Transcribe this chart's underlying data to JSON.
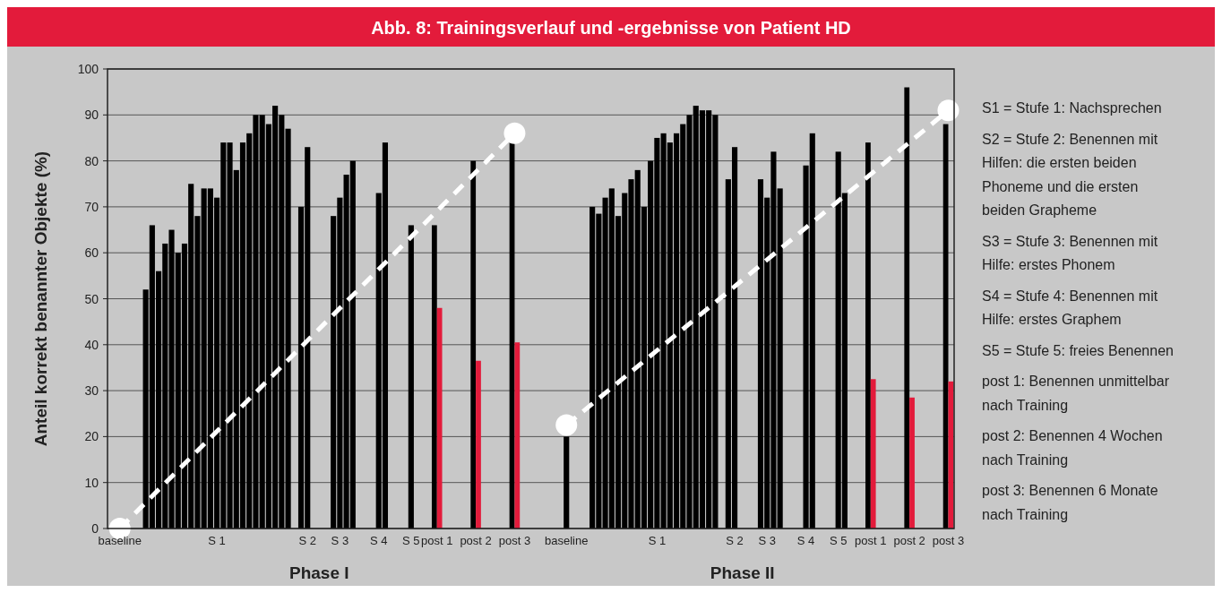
{
  "chart_data": {
    "type": "bar",
    "title": "Abb. 8: Trainingsverlauf und -ergebnisse von Patient HD",
    "ylabel": "Anteil korrekt benannter Objekte (%)",
    "categories": [
      null,
      "baseline",
      null,
      null,
      null,
      null,
      null,
      null,
      null,
      null,
      null,
      null,
      null,
      null,
      null,
      null,
      "S 1",
      null,
      null,
      null,
      null,
      null,
      null,
      null,
      null,
      null,
      null,
      null,
      null,
      null,
      "S 2",
      null,
      null,
      null,
      null,
      "S 3",
      null,
      null,
      null,
      null,
      null,
      "S 4",
      null,
      null,
      null,
      null,
      "S 5",
      null,
      null,
      null,
      "post 1",
      null,
      null,
      null,
      null,
      null,
      "post 2",
      null,
      null,
      null,
      null,
      null,
      "post 3",
      null,
      null,
      null,
      null,
      null,
      null,
      null,
      "baseline",
      null,
      null,
      null,
      null,
      null,
      null,
      null,
      null,
      null,
      null,
      null,
      null,
      null,
      "S 1",
      null,
      null,
      null,
      null,
      null,
      null,
      null,
      null,
      null,
      null,
      null,
      "S 2",
      null,
      null,
      null,
      null,
      "S 3",
      null,
      null,
      null,
      null,
      null,
      "S 4",
      null,
      null,
      null,
      null,
      "S 5",
      null,
      null,
      null,
      null,
      "post 1",
      null,
      null,
      null,
      null,
      null,
      "post 2",
      null,
      null,
      null,
      null,
      null,
      "post 3"
    ],
    "ylim": [
      0,
      100
    ],
    "yticks": [
      0,
      10,
      20,
      30,
      40,
      50,
      60,
      70,
      80,
      90,
      100
    ],
    "grid": "y",
    "series": [
      {
        "color": "#000000",
        "values": [
          null,
          0,
          null,
          null,
          null,
          52,
          66,
          56,
          62,
          65,
          60,
          62,
          75,
          68,
          74,
          74,
          72,
          84,
          84,
          78,
          84,
          86,
          90,
          90,
          88,
          92,
          90,
          87,
          null,
          70,
          83,
          null,
          null,
          null,
          68,
          72,
          77,
          80,
          null,
          null,
          null,
          73,
          84,
          null,
          null,
          null,
          66,
          null,
          null,
          null,
          66,
          null,
          null,
          null,
          null,
          null,
          80,
          null,
          null,
          null,
          null,
          null,
          84,
          null,
          null,
          null,
          null,
          null,
          null,
          null,
          20,
          null,
          null,
          null,
          70,
          68.5,
          72,
          74,
          68,
          73,
          76,
          78,
          70,
          80,
          85,
          86,
          84,
          86,
          88,
          90,
          92,
          91,
          91,
          90,
          null,
          76,
          83,
          null,
          null,
          null,
          76,
          72,
          82,
          74,
          null,
          null,
          null,
          79,
          86,
          null,
          null,
          null,
          82,
          73,
          null,
          null,
          null,
          84,
          null,
          null,
          null,
          null,
          null,
          96,
          null,
          null,
          null,
          null,
          null,
          88
        ]
      },
      {
        "color": "#e31b3b",
        "values": [
          null,
          null,
          null,
          null,
          null,
          null,
          null,
          null,
          null,
          null,
          null,
          null,
          null,
          null,
          null,
          null,
          null,
          null,
          null,
          null,
          null,
          null,
          null,
          null,
          null,
          null,
          null,
          null,
          null,
          null,
          null,
          null,
          null,
          null,
          null,
          null,
          null,
          null,
          null,
          null,
          null,
          null,
          null,
          null,
          null,
          null,
          null,
          null,
          null,
          null,
          48,
          null,
          null,
          null,
          null,
          null,
          36.5,
          null,
          null,
          null,
          null,
          null,
          40.5,
          null,
          null,
          null,
          null,
          null,
          null,
          null,
          null,
          null,
          null,
          null,
          null,
          null,
          null,
          null,
          null,
          null,
          null,
          null,
          null,
          null,
          null,
          null,
          null,
          null,
          null,
          null,
          null,
          null,
          null,
          null,
          null,
          null,
          null,
          null,
          null,
          null,
          null,
          null,
          null,
          null,
          null,
          null,
          null,
          null,
          null,
          null,
          null,
          null,
          null,
          null,
          null,
          null,
          null,
          32.5,
          null,
          null,
          null,
          null,
          null,
          28.5,
          null,
          null,
          null,
          null,
          null,
          32
        ]
      },
      {
        "type": "line",
        "color": "#ffffff",
        "marker": "circle",
        "line_style": "dashed",
        "values": [
          null,
          0,
          null,
          null,
          null,
          null,
          null,
          null,
          null,
          null,
          null,
          null,
          null,
          null,
          null,
          null,
          null,
          null,
          null,
          null,
          null,
          null,
          null,
          null,
          null,
          null,
          null,
          null,
          null,
          null,
          null,
          null,
          null,
          null,
          null,
          null,
          null,
          null,
          null,
          null,
          null,
          null,
          null,
          null,
          null,
          null,
          null,
          null,
          null,
          null,
          null,
          null,
          null,
          null,
          null,
          null,
          null,
          null,
          null,
          null,
          null,
          null,
          86,
          null,
          null,
          null,
          null,
          null,
          null,
          null,
          null,
          null,
          null,
          null,
          null,
          null,
          null,
          null,
          null,
          null,
          null,
          null,
          null,
          null,
          null,
          null,
          null,
          null,
          null,
          null,
          null,
          null,
          null,
          null,
          null,
          null,
          null,
          null,
          null,
          null,
          null,
          null,
          null,
          null,
          null,
          null,
          null,
          null,
          null,
          null,
          null,
          null,
          null,
          null,
          null,
          null,
          null,
          null,
          null,
          null,
          null,
          null,
          null,
          null,
          null,
          null,
          null,
          null,
          null,
          null
        ]
      },
      {
        "type": "line",
        "color": "#ffffff",
        "marker": "circle",
        "line_style": "dashed",
        "values": [
          null,
          null,
          null,
          null,
          null,
          null,
          null,
          null,
          null,
          null,
          null,
          null,
          null,
          null,
          null,
          null,
          null,
          null,
          null,
          null,
          null,
          null,
          null,
          null,
          null,
          null,
          null,
          null,
          null,
          null,
          null,
          null,
          null,
          null,
          null,
          null,
          null,
          null,
          null,
          null,
          null,
          null,
          null,
          null,
          null,
          null,
          null,
          null,
          null,
          null,
          null,
          null,
          null,
          null,
          null,
          null,
          null,
          null,
          null,
          null,
          null,
          null,
          null,
          null,
          null,
          null,
          null,
          null,
          null,
          null,
          22.5,
          null,
          null,
          null,
          null,
          null,
          null,
          null,
          null,
          null,
          null,
          null,
          null,
          null,
          null,
          null,
          null,
          null,
          null,
          null,
          null,
          null,
          null,
          null,
          null,
          null,
          null,
          null,
          null,
          null,
          null,
          null,
          null,
          null,
          null,
          null,
          null,
          null,
          null,
          null,
          null,
          null,
          null,
          null,
          null,
          null,
          null,
          null,
          null,
          null,
          null,
          null,
          null,
          null,
          null,
          null,
          null,
          null,
          null,
          91
        ]
      }
    ],
    "annotations": [
      "Phase I",
      "Phase II",
      "S1 = Stufe 1: Nachsprechen",
      "S2 = Stufe 2: Benennen mit\nHilfen: die ersten beiden\nPhoneme und die ersten\nbeiden Grapheme",
      "S3 = Stufe 3: Benennen mit\nHilfe: erstes Phonem",
      "S4 = Stufe 4: Benennen mit\nHilfe: erstes Graphem",
      "S5 = Stufe 5: freies Benennen",
      "post 1: Benennen unmittelbar\nnach Training",
      "post 2: Benennen 4 Wochen\nnach Training",
      "post 3: Benennen 6 Monate\nnach Training"
    ]
  }
}
